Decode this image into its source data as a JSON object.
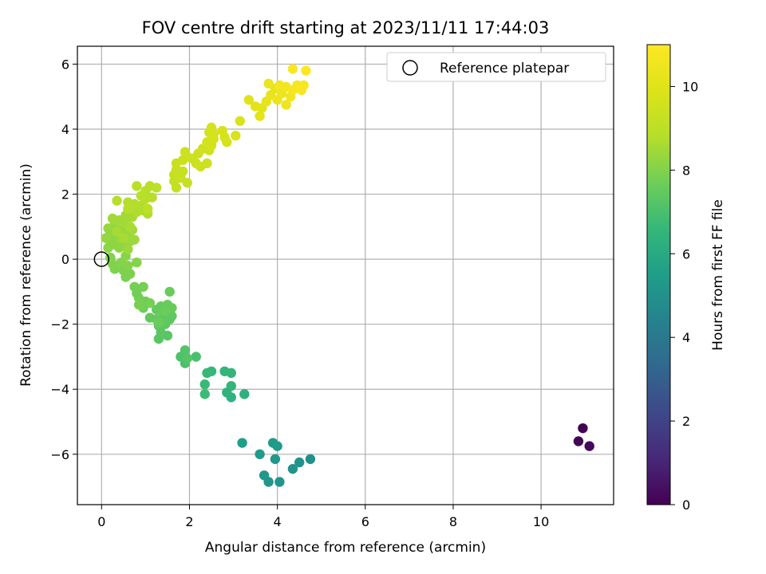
{
  "chart_data": {
    "type": "scatter",
    "title": "FOV centre drift starting at 2023/11/11 17:44:03",
    "xlabel": "Angular distance from reference (arcmin)",
    "ylabel": "Rotation from reference (arcmin)",
    "xlim": [
      -0.55,
      11.65
    ],
    "ylim": [
      -7.55,
      6.55
    ],
    "xticks": [
      0,
      2,
      4,
      6,
      8,
      10
    ],
    "yticks": [
      -6,
      -4,
      -2,
      0,
      2,
      4,
      6
    ],
    "grid": true,
    "legend": {
      "position": "top-right",
      "entries": [
        "Reference platepar"
      ]
    },
    "reference_point": {
      "x": 0,
      "y": 0,
      "label": "Reference platepar"
    },
    "colorbar": {
      "label": "Hours from first FF file",
      "range": [
        0,
        11
      ],
      "ticks": [
        0,
        2,
        4,
        6,
        8,
        10
      ],
      "colormap": "viridis"
    },
    "points": [
      {
        "x": 10.95,
        "y": -5.2,
        "t": 0.0
      },
      {
        "x": 10.85,
        "y": -5.6,
        "t": 0.1
      },
      {
        "x": 11.1,
        "y": -5.75,
        "t": 0.2
      },
      {
        "x": 4.75,
        "y": -6.15,
        "t": 5.0
      },
      {
        "x": 4.5,
        "y": -6.25,
        "t": 5.05
      },
      {
        "x": 4.35,
        "y": -6.45,
        "t": 5.1
      },
      {
        "x": 4.05,
        "y": -6.85,
        "t": 5.15
      },
      {
        "x": 3.8,
        "y": -6.85,
        "t": 5.2
      },
      {
        "x": 3.7,
        "y": -6.65,
        "t": 5.25
      },
      {
        "x": 3.95,
        "y": -6.15,
        "t": 5.3
      },
      {
        "x": 3.6,
        "y": -6.0,
        "t": 5.35
      },
      {
        "x": 3.9,
        "y": -5.65,
        "t": 5.4
      },
      {
        "x": 4.0,
        "y": -5.75,
        "t": 5.45
      },
      {
        "x": 3.2,
        "y": -5.65,
        "t": 5.5
      },
      {
        "x": 3.25,
        "y": -4.15,
        "t": 6.3
      },
      {
        "x": 2.95,
        "y": -4.25,
        "t": 6.35
      },
      {
        "x": 2.85,
        "y": -4.1,
        "t": 6.4
      },
      {
        "x": 2.95,
        "y": -3.9,
        "t": 6.45
      },
      {
        "x": 2.95,
        "y": -3.5,
        "t": 6.5
      },
      {
        "x": 2.8,
        "y": -3.45,
        "t": 6.55
      },
      {
        "x": 2.5,
        "y": -3.45,
        "t": 6.6
      },
      {
        "x": 2.4,
        "y": -3.5,
        "t": 6.65
      },
      {
        "x": 2.35,
        "y": -3.85,
        "t": 6.7
      },
      {
        "x": 2.35,
        "y": -4.15,
        "t": 6.75
      },
      {
        "x": 2.15,
        "y": -3.0,
        "t": 7.0
      },
      {
        "x": 1.9,
        "y": -3.2,
        "t": 7.05
      },
      {
        "x": 1.8,
        "y": -3.0,
        "t": 7.1
      },
      {
        "x": 1.9,
        "y": -2.8,
        "t": 7.15
      },
      {
        "x": 1.95,
        "y": -3.05,
        "t": 7.2
      },
      {
        "x": 1.3,
        "y": -2.45,
        "t": 7.3
      },
      {
        "x": 1.5,
        "y": -2.35,
        "t": 7.32
      },
      {
        "x": 1.35,
        "y": -2.25,
        "t": 7.34
      },
      {
        "x": 1.3,
        "y": -2.05,
        "t": 7.36
      },
      {
        "x": 1.45,
        "y": -2.0,
        "t": 7.38
      },
      {
        "x": 1.55,
        "y": -1.85,
        "t": 7.4
      },
      {
        "x": 1.6,
        "y": -1.75,
        "t": 7.42
      },
      {
        "x": 1.4,
        "y": -1.75,
        "t": 7.44
      },
      {
        "x": 1.25,
        "y": -1.85,
        "t": 7.46
      },
      {
        "x": 1.1,
        "y": -1.8,
        "t": 7.48
      },
      {
        "x": 1.25,
        "y": -1.55,
        "t": 7.5
      },
      {
        "x": 1.35,
        "y": -1.45,
        "t": 7.52
      },
      {
        "x": 1.5,
        "y": -1.4,
        "t": 7.54
      },
      {
        "x": 1.6,
        "y": -1.5,
        "t": 7.56
      },
      {
        "x": 1.55,
        "y": -1.0,
        "t": 7.58
      },
      {
        "x": 1.45,
        "y": -1.6,
        "t": 7.6
      },
      {
        "x": 1.3,
        "y": -1.95,
        "t": 7.62
      },
      {
        "x": 0.95,
        "y": -1.5,
        "t": 7.7
      },
      {
        "x": 1.0,
        "y": -1.3,
        "t": 7.72
      },
      {
        "x": 0.85,
        "y": -1.2,
        "t": 7.74
      },
      {
        "x": 0.8,
        "y": -1.05,
        "t": 7.76
      },
      {
        "x": 0.75,
        "y": -0.85,
        "t": 7.78
      },
      {
        "x": 0.95,
        "y": -0.85,
        "t": 7.8
      },
      {
        "x": 1.1,
        "y": -1.35,
        "t": 7.82
      },
      {
        "x": 0.85,
        "y": -1.4,
        "t": 7.84
      },
      {
        "x": 0.55,
        "y": -0.55,
        "t": 7.9
      },
      {
        "x": 0.65,
        "y": -0.45,
        "t": 7.92
      },
      {
        "x": 0.5,
        "y": -0.35,
        "t": 7.94
      },
      {
        "x": 0.3,
        "y": -0.3,
        "t": 7.96
      },
      {
        "x": 0.25,
        "y": -0.15,
        "t": 7.98
      },
      {
        "x": 0.2,
        "y": 0.05,
        "t": 8.0
      },
      {
        "x": 0.45,
        "y": -0.1,
        "t": 8.02
      },
      {
        "x": 0.6,
        "y": -0.2,
        "t": 8.04
      },
      {
        "x": 0.8,
        "y": -0.1,
        "t": 8.06
      },
      {
        "x": 0.55,
        "y": 0.1,
        "t": 8.08
      },
      {
        "x": 0.15,
        "y": 0.35,
        "t": 8.15
      },
      {
        "x": 0.2,
        "y": 0.55,
        "t": 8.17
      },
      {
        "x": 0.3,
        "y": 0.45,
        "t": 8.19
      },
      {
        "x": 0.4,
        "y": 0.35,
        "t": 8.21
      },
      {
        "x": 0.5,
        "y": 0.5,
        "t": 8.23
      },
      {
        "x": 0.35,
        "y": 0.7,
        "t": 8.25
      },
      {
        "x": 0.2,
        "y": 0.8,
        "t": 8.27
      },
      {
        "x": 0.1,
        "y": 0.65,
        "t": 8.29
      },
      {
        "x": 0.15,
        "y": 0.95,
        "t": 8.31
      },
      {
        "x": 0.3,
        "y": 1.05,
        "t": 8.33
      },
      {
        "x": 0.45,
        "y": 0.9,
        "t": 8.35
      },
      {
        "x": 0.6,
        "y": 0.75,
        "t": 8.37
      },
      {
        "x": 0.65,
        "y": 0.55,
        "t": 8.39
      },
      {
        "x": 0.6,
        "y": 0.3,
        "t": 8.41
      },
      {
        "x": 0.7,
        "y": 0.9,
        "t": 8.43
      },
      {
        "x": 0.75,
        "y": 0.6,
        "t": 8.45
      },
      {
        "x": 0.25,
        "y": 1.25,
        "t": 8.47
      },
      {
        "x": 0.4,
        "y": 1.2,
        "t": 8.49
      },
      {
        "x": 0.55,
        "y": 1.1,
        "t": 8.51
      },
      {
        "x": 0.55,
        "y": 1.35,
        "t": 8.53
      },
      {
        "x": 0.7,
        "y": 1.3,
        "t": 8.55
      },
      {
        "x": 0.35,
        "y": 0.85,
        "t": 8.57
      },
      {
        "x": 0.5,
        "y": 0.65,
        "t": 8.59
      },
      {
        "x": 0.65,
        "y": 1.0,
        "t": 8.61
      },
      {
        "x": 0.8,
        "y": 1.45,
        "t": 8.7
      },
      {
        "x": 0.95,
        "y": 1.5,
        "t": 8.72
      },
      {
        "x": 1.05,
        "y": 1.4,
        "t": 8.74
      },
      {
        "x": 0.9,
        "y": 1.65,
        "t": 8.76
      },
      {
        "x": 0.75,
        "y": 1.7,
        "t": 8.78
      },
      {
        "x": 0.6,
        "y": 1.75,
        "t": 8.8
      },
      {
        "x": 0.6,
        "y": 1.55,
        "t": 8.82
      },
      {
        "x": 0.35,
        "y": 1.8,
        "t": 8.84
      },
      {
        "x": 1.0,
        "y": 1.85,
        "t": 8.86
      },
      {
        "x": 1.15,
        "y": 1.9,
        "t": 8.88
      },
      {
        "x": 1.0,
        "y": 2.1,
        "t": 8.9
      },
      {
        "x": 0.8,
        "y": 2.25,
        "t": 8.92
      },
      {
        "x": 0.9,
        "y": 1.95,
        "t": 8.94
      },
      {
        "x": 1.1,
        "y": 2.25,
        "t": 8.96
      },
      {
        "x": 1.25,
        "y": 2.2,
        "t": 8.98
      },
      {
        "x": 1.05,
        "y": 1.55,
        "t": 9.0
      },
      {
        "x": 1.7,
        "y": 2.2,
        "t": 9.2
      },
      {
        "x": 1.65,
        "y": 2.4,
        "t": 9.22
      },
      {
        "x": 1.65,
        "y": 2.6,
        "t": 9.24
      },
      {
        "x": 1.8,
        "y": 2.5,
        "t": 9.26
      },
      {
        "x": 1.95,
        "y": 2.35,
        "t": 9.28
      },
      {
        "x": 1.85,
        "y": 2.7,
        "t": 9.3
      },
      {
        "x": 1.7,
        "y": 2.75,
        "t": 9.32
      },
      {
        "x": 1.7,
        "y": 2.95,
        "t": 9.34
      },
      {
        "x": 1.85,
        "y": 3.05,
        "t": 9.36
      },
      {
        "x": 1.95,
        "y": 3.15,
        "t": 9.38
      },
      {
        "x": 1.9,
        "y": 3.3,
        "t": 9.4
      },
      {
        "x": 2.05,
        "y": 3.1,
        "t": 9.42
      },
      {
        "x": 2.15,
        "y": 2.95,
        "t": 9.44
      },
      {
        "x": 2.25,
        "y": 2.85,
        "t": 9.46
      },
      {
        "x": 2.4,
        "y": 2.95,
        "t": 9.48
      },
      {
        "x": 2.2,
        "y": 3.25,
        "t": 9.5
      },
      {
        "x": 2.3,
        "y": 3.4,
        "t": 9.52
      },
      {
        "x": 2.45,
        "y": 3.35,
        "t": 9.54
      },
      {
        "x": 2.4,
        "y": 3.6,
        "t": 9.6
      },
      {
        "x": 2.5,
        "y": 3.5,
        "t": 9.62
      },
      {
        "x": 2.55,
        "y": 3.7,
        "t": 9.64
      },
      {
        "x": 2.45,
        "y": 3.9,
        "t": 9.66
      },
      {
        "x": 2.5,
        "y": 4.05,
        "t": 9.68
      },
      {
        "x": 2.55,
        "y": 3.85,
        "t": 9.7
      },
      {
        "x": 2.8,
        "y": 3.75,
        "t": 9.72
      },
      {
        "x": 2.85,
        "y": 3.6,
        "t": 9.74
      },
      {
        "x": 2.75,
        "y": 3.95,
        "t": 9.76
      },
      {
        "x": 3.05,
        "y": 3.8,
        "t": 9.78
      },
      {
        "x": 3.15,
        "y": 4.25,
        "t": 9.8
      },
      {
        "x": 3.35,
        "y": 4.9,
        "t": 10.0
      },
      {
        "x": 3.5,
        "y": 4.7,
        "t": 10.05
      },
      {
        "x": 3.6,
        "y": 4.4,
        "t": 10.1
      },
      {
        "x": 3.65,
        "y": 4.65,
        "t": 10.15
      },
      {
        "x": 3.75,
        "y": 4.85,
        "t": 10.2
      },
      {
        "x": 3.85,
        "y": 5.05,
        "t": 10.25
      },
      {
        "x": 3.95,
        "y": 5.25,
        "t": 10.3
      },
      {
        "x": 3.8,
        "y": 5.4,
        "t": 10.35
      },
      {
        "x": 4.0,
        "y": 4.9,
        "t": 10.4
      },
      {
        "x": 4.1,
        "y": 5.1,
        "t": 10.45
      },
      {
        "x": 4.2,
        "y": 4.75,
        "t": 10.5
      },
      {
        "x": 4.3,
        "y": 5.0,
        "t": 10.55
      },
      {
        "x": 4.05,
        "y": 5.35,
        "t": 10.6
      },
      {
        "x": 4.2,
        "y": 5.3,
        "t": 10.65
      },
      {
        "x": 4.35,
        "y": 5.2,
        "t": 10.7
      },
      {
        "x": 4.45,
        "y": 5.35,
        "t": 10.75
      },
      {
        "x": 4.6,
        "y": 5.35,
        "t": 10.8
      },
      {
        "x": 4.55,
        "y": 5.2,
        "t": 10.85
      },
      {
        "x": 4.35,
        "y": 5.85,
        "t": 10.9
      },
      {
        "x": 4.65,
        "y": 5.8,
        "t": 11.0
      }
    ]
  }
}
